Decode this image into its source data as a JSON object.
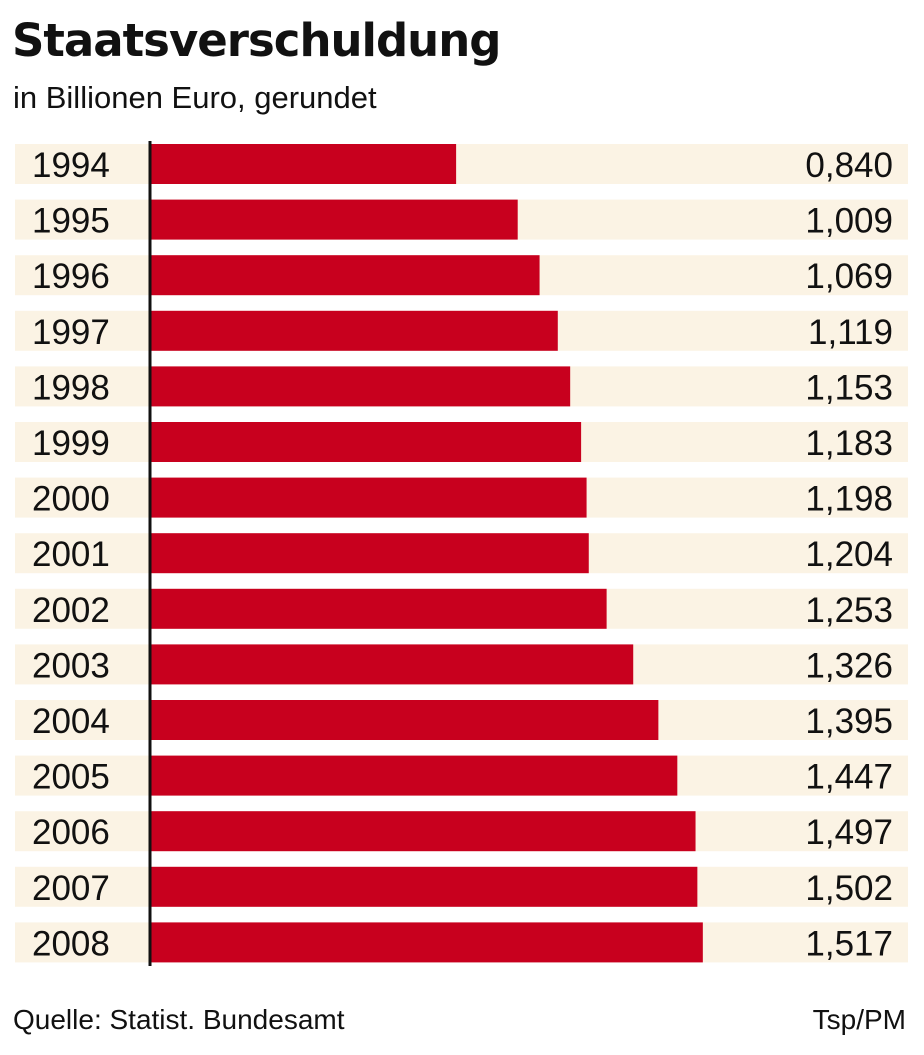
{
  "chart_data": {
    "type": "bar",
    "orientation": "horizontal",
    "title": "Staatsverschuldung",
    "subtitle": "in Billionen Euro, gerundet",
    "categories": [
      "1994",
      "1995",
      "1996",
      "1997",
      "1998",
      "1999",
      "2000",
      "2001",
      "2002",
      "2003",
      "2004",
      "2005",
      "2006",
      "2007",
      "2008"
    ],
    "values": [
      0.84,
      1.009,
      1.069,
      1.119,
      1.153,
      1.183,
      1.198,
      1.204,
      1.253,
      1.326,
      1.395,
      1.447,
      1.497,
      1.502,
      1.517
    ],
    "value_labels": [
      "0,840",
      "1,009",
      "1,069",
      "1,119",
      "1,153",
      "1,183",
      "1,198",
      "1,204",
      "1,253",
      "1,326",
      "1,395",
      "1,447",
      "1,497",
      "1,502",
      "1,517"
    ],
    "xlim": [
      0,
      2.08
    ],
    "grid": false,
    "bar_color": "#c8001e",
    "row_background": "#fbf3e4"
  },
  "footer": {
    "source": "Quelle: Statist. Bundesamt",
    "credit": "Tsp/PM"
  }
}
